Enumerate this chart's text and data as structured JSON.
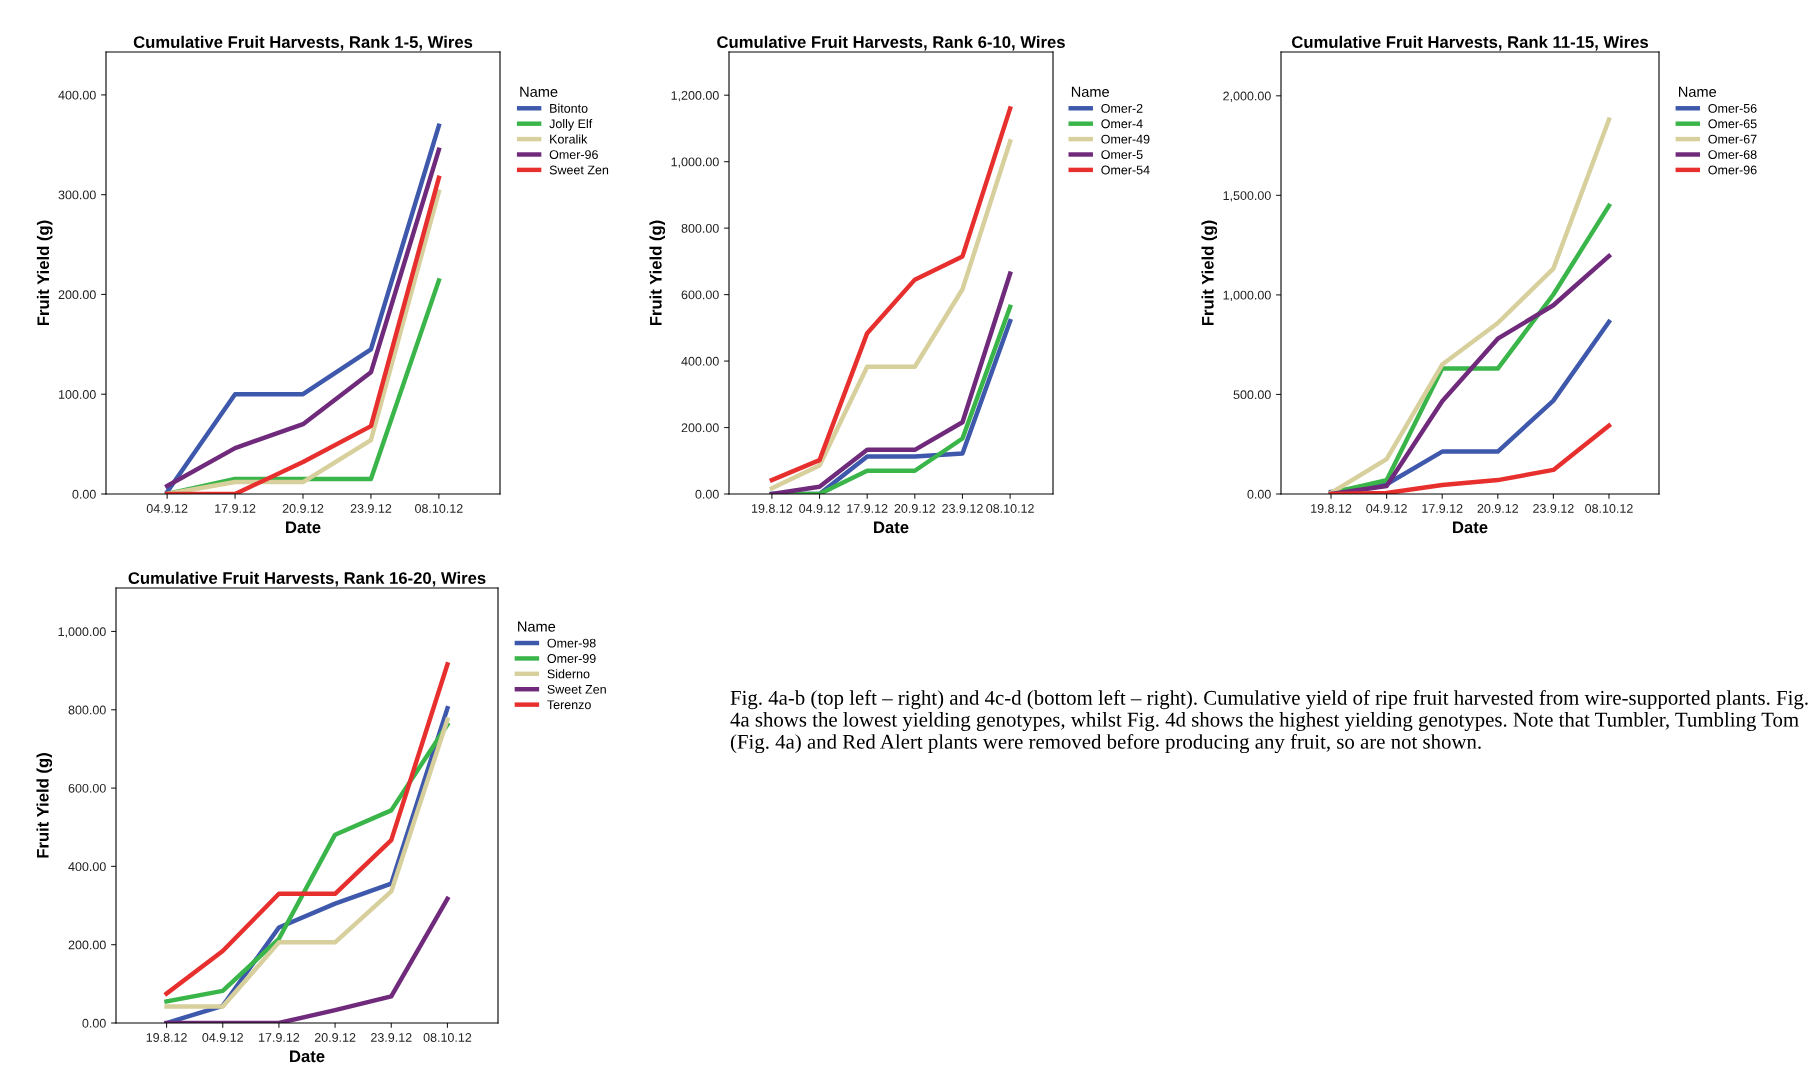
{
  "chart_data": [
    {
      "type": "line",
      "title": "Cumulative Fruit Harvests, Rank 1-5, Wires",
      "xlabel": "Date",
      "ylabel": "Fruit Yield (g)",
      "legend_title": "Name",
      "legend": "right",
      "grid": false,
      "categories": [
        "04.9.12",
        "17.9.12",
        "20.9.12",
        "23.9.12",
        "08.10.12"
      ],
      "ylim": [
        0,
        443
      ],
      "yticks": [
        {
          "value": 0,
          "label": "0.00"
        },
        {
          "value": 100,
          "label": "100.00"
        },
        {
          "value": 200,
          "label": "200.00"
        },
        {
          "value": 300,
          "label": "300.00"
        },
        {
          "value": 400,
          "label": "400.00"
        }
      ],
      "series": [
        {
          "name": "Bitonto",
          "color": "#3e58ac",
          "values": [
            2,
            100,
            100,
            145,
            369
          ]
        },
        {
          "name": "Jolly Elf",
          "color": "#3ab54a",
          "values": [
            0,
            15,
            15,
            15,
            214
          ]
        },
        {
          "name": "Koralik",
          "color": "#d7cf9c",
          "values": [
            0,
            12,
            12,
            54,
            303
          ]
        },
        {
          "name": "Omer-96",
          "color": "#702a7b",
          "values": [
            8,
            46,
            70,
            122,
            345
          ]
        },
        {
          "name": "Sweet Zen",
          "color": "#e7302e",
          "values": [
            0,
            0,
            32,
            68,
            317
          ]
        }
      ]
    },
    {
      "type": "line",
      "title": "Cumulative Fruit Harvests, Rank 6-10, Wires",
      "xlabel": "Date",
      "ylabel": "Fruit Yield (g)",
      "legend_title": "Name",
      "legend": "right",
      "grid": false,
      "categories": [
        "19.8.12",
        "04.9.12",
        "17.9.12",
        "20.9.12",
        "23.9.12",
        "08.10.12"
      ],
      "ylim": [
        0,
        1330
      ],
      "yticks": [
        {
          "value": 0,
          "label": "0.00"
        },
        {
          "value": 200,
          "label": "200.00"
        },
        {
          "value": 400,
          "label": "400.00"
        },
        {
          "value": 600,
          "label": "600.00"
        },
        {
          "value": 800,
          "label": "800.00"
        },
        {
          "value": 1000,
          "label": "1,000.00"
        },
        {
          "value": 1200,
          "label": "1,200.00"
        }
      ],
      "series": [
        {
          "name": "Omer-2",
          "color": "#3e58ac",
          "values": [
            0,
            0,
            113,
            113,
            122,
            520
          ]
        },
        {
          "name": "Omer-4",
          "color": "#3ab54a",
          "values": [
            0,
            0,
            70,
            70,
            167,
            563
          ]
        },
        {
          "name": "Omer-49",
          "color": "#d7cf9c",
          "values": [
            17,
            86,
            383,
            383,
            616,
            1061
          ]
        },
        {
          "name": "Omer-5",
          "color": "#702a7b",
          "values": [
            0,
            22,
            133,
            133,
            216,
            663
          ]
        },
        {
          "name": "Omer-54",
          "color": "#e7302e",
          "values": [
            42,
            102,
            484,
            645,
            715,
            1160
          ]
        }
      ]
    },
    {
      "type": "line",
      "title": "Cumulative Fruit Harvests, Rank 11-15, Wires",
      "xlabel": "Date",
      "ylabel": "Fruit Yield (g)",
      "legend_title": "Name",
      "legend": "right",
      "grid": false,
      "categories": [
        "19.8.12",
        "04.9.12",
        "17.9.12",
        "20.9.12",
        "23.9.12",
        "08.10.12"
      ],
      "ylim": [
        0,
        2220
      ],
      "yticks": [
        {
          "value": 0,
          "label": "0.00"
        },
        {
          "value": 500,
          "label": "500.00"
        },
        {
          "value": 1000,
          "label": "1,000.00"
        },
        {
          "value": 1500,
          "label": "1,500.00"
        },
        {
          "value": 2000,
          "label": "2,000.00"
        }
      ],
      "series": [
        {
          "name": "Omer-56",
          "color": "#3e58ac",
          "values": [
            10,
            49,
            213,
            213,
            469,
            865
          ]
        },
        {
          "name": "Omer-65",
          "color": "#3ab54a",
          "values": [
            5,
            69,
            630,
            630,
            1002,
            1448
          ]
        },
        {
          "name": "Omer-67",
          "color": "#d7cf9c",
          "values": [
            5,
            175,
            650,
            859,
            1132,
            1881
          ]
        },
        {
          "name": "Omer-68",
          "color": "#702a7b",
          "values": [
            0,
            40,
            466,
            780,
            948,
            1195
          ]
        },
        {
          "name": "Omer-96",
          "color": "#e7302e",
          "values": [
            0,
            5,
            45,
            70,
            121,
            343
          ]
        }
      ]
    },
    {
      "type": "line",
      "title": "Cumulative Fruit Harvests, Rank 16-20, Wires",
      "xlabel": "Date",
      "ylabel": "Fruit Yield (g)",
      "legend_title": "Name",
      "legend": "right",
      "grid": false,
      "categories": [
        "19.8.12",
        "04.9.12",
        "17.9.12",
        "20.9.12",
        "23.9.12",
        "08.10.12"
      ],
      "ylim": [
        0,
        1111
      ],
      "yticks": [
        {
          "value": 0,
          "label": "0.00"
        },
        {
          "value": 200,
          "label": "200.00"
        },
        {
          "value": 400,
          "label": "400.00"
        },
        {
          "value": 600,
          "label": "600.00"
        },
        {
          "value": 800,
          "label": "800.00"
        },
        {
          "value": 1000,
          "label": "1,000.00"
        }
      ],
      "series": [
        {
          "name": "Omer-98",
          "color": "#3e58ac",
          "values": [
            0,
            44,
            244,
            305,
            356,
            804
          ]
        },
        {
          "name": "Omer-99",
          "color": "#3ab54a",
          "values": [
            55,
            82,
            215,
            481,
            543,
            762
          ]
        },
        {
          "name": "Siderno",
          "color": "#d7cf9c",
          "values": [
            42,
            42,
            206,
            206,
            336,
            775
          ]
        },
        {
          "name": "Sweet Zen",
          "color": "#702a7b",
          "values": [
            0,
            0,
            0,
            33,
            68,
            317
          ]
        },
        {
          "name": "Terenzo",
          "color": "#e7302e",
          "values": [
            75,
            184,
            330,
            330,
            467,
            916
          ]
        }
      ],
      "annotations": [
        "Fig. 4a-b (top left – right) and 4c-d (bottom left – right). Cumulative yield of ripe fruit harvested from wire-supported plants. Fig. 4a shows the lowest yielding genotypes, whilst Fig. 4d shows the highest yielding genotypes. Note that Tumbler, Tumbling Tom (Fig. 4a) and Red Alert plants were removed before producing any fruit, so are not shown."
      ]
    }
  ]
}
